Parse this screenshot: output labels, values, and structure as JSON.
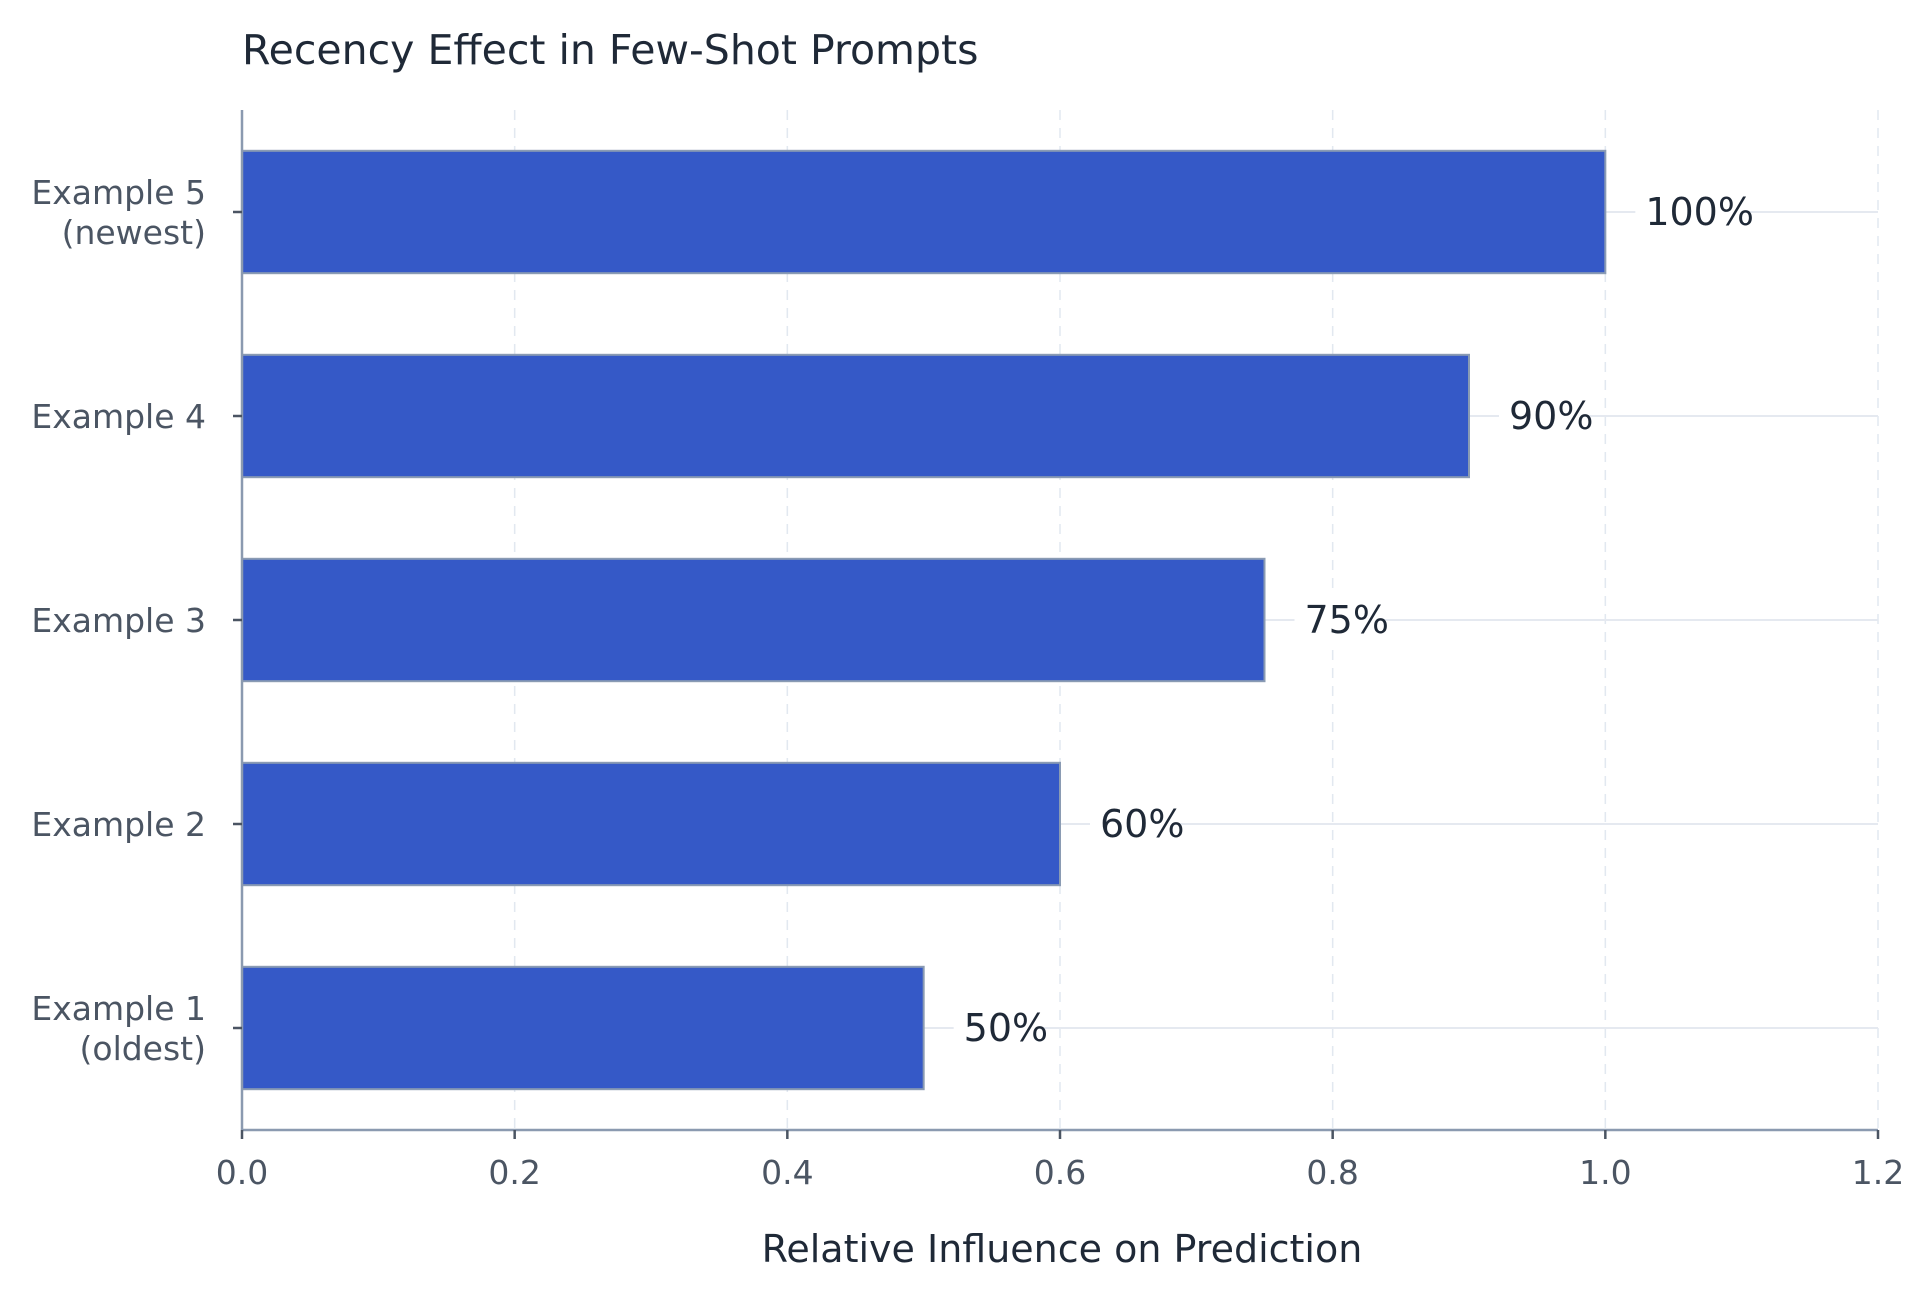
{
  "chart_data": {
    "type": "bar",
    "orientation": "horizontal",
    "title": "Recency Effect in Few-Shot Prompts",
    "xlabel": "Relative Influence on Prediction",
    "ylabel": "",
    "xlim": [
      0,
      1.2
    ],
    "xticks": [
      0.0,
      0.2,
      0.4,
      0.6,
      0.8,
      1.0,
      1.2
    ],
    "xtick_labels": [
      "0.0",
      "0.2",
      "0.4",
      "0.6",
      "0.8",
      "1.0",
      "1.2"
    ],
    "categories": [
      [
        "Example 1",
        "(oldest)"
      ],
      [
        "Example 2"
      ],
      [
        "Example 3"
      ],
      [
        "Example 4"
      ],
      [
        "Example 5",
        "(newest)"
      ]
    ],
    "values": [
      0.5,
      0.6,
      0.75,
      0.9,
      1.0
    ],
    "data_labels": [
      "50%",
      "60%",
      "75%",
      "90%",
      "100%"
    ],
    "bar_color": "#3559c7",
    "grid": true,
    "legend": "none"
  }
}
